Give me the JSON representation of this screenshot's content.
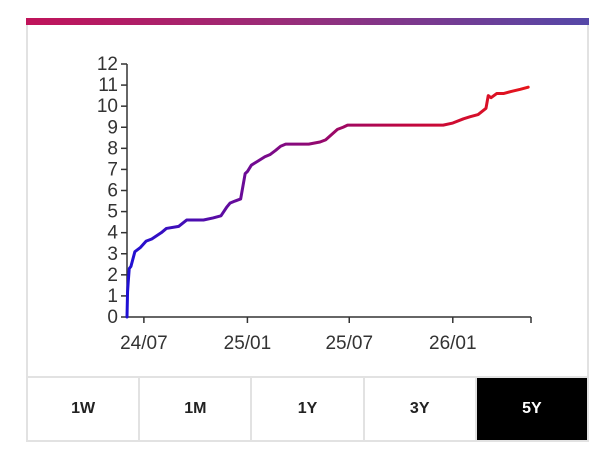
{
  "chart_data": {
    "type": "line",
    "title": "",
    "xlabel": "",
    "ylabel": "",
    "ylim": [
      0,
      12
    ],
    "yticks": [
      0,
      1,
      2,
      3,
      4,
      5,
      6,
      7,
      8,
      9,
      10,
      11,
      12
    ],
    "xticks": [
      "24/07",
      "25/01",
      "25/07",
      "26/01"
    ],
    "xtick_dates": [
      "2024-07-01",
      "2025-01-01",
      "2025-07-01",
      "2026-01-01"
    ],
    "xlim": [
      "2024-06-01",
      "2026-05-20"
    ],
    "grid": false,
    "gradient_colors": [
      "#1f10d4",
      "#7a0a8a",
      "#c0063f",
      "#e6151b"
    ],
    "series": [
      {
        "x": [
          "2024-06-01",
          "2024-06-02",
          "2024-06-03",
          "2024-06-05",
          "2024-06-08",
          "2024-06-15",
          "2024-06-25",
          "2024-07-05",
          "2024-07-15",
          "2024-08-01",
          "2024-08-10",
          "2024-09-01",
          "2024-09-15",
          "2024-10-01",
          "2024-10-15",
          "2024-11-01",
          "2024-11-15",
          "2024-11-25",
          "2024-12-01",
          "2024-12-10",
          "2024-12-20",
          "2024-12-28",
          "2025-01-01",
          "2025-01-08",
          "2025-01-20",
          "2025-02-01",
          "2025-02-10",
          "2025-02-20",
          "2025-03-01",
          "2025-03-10",
          "2025-03-20",
          "2025-04-01",
          "2025-04-20",
          "2025-05-10",
          "2025-05-20",
          "2025-06-10",
          "2025-06-20",
          "2025-06-28",
          "2025-07-15",
          "2025-08-15",
          "2025-09-15",
          "2025-10-15",
          "2025-11-15",
          "2025-12-15",
          "2026-01-01",
          "2026-01-20",
          "2026-02-01",
          "2026-02-15",
          "2026-03-01",
          "2026-03-05",
          "2026-03-10",
          "2026-03-20",
          "2026-04-01",
          "2026-04-15",
          "2026-05-01",
          "2026-05-15"
        ],
        "y": [
          0,
          1.2,
          1.6,
          2.3,
          2.4,
          3.1,
          3.3,
          3.6,
          3.7,
          4.0,
          4.2,
          4.3,
          4.6,
          4.6,
          4.6,
          4.7,
          4.8,
          5.2,
          5.4,
          5.5,
          5.6,
          6.8,
          6.9,
          7.2,
          7.4,
          7.6,
          7.7,
          7.9,
          8.1,
          8.2,
          8.2,
          8.2,
          8.2,
          8.3,
          8.4,
          8.9,
          9.0,
          9.1,
          9.1,
          9.1,
          9.1,
          9.1,
          9.1,
          9.1,
          9.2,
          9.4,
          9.5,
          9.6,
          9.9,
          10.5,
          10.4,
          10.6,
          10.6,
          10.7,
          10.8,
          10.9
        ]
      }
    ]
  },
  "range_tabs": {
    "items": [
      {
        "label": "1W"
      },
      {
        "label": "1M"
      },
      {
        "label": "1Y"
      },
      {
        "label": "3Y"
      },
      {
        "label": "5Y"
      }
    ],
    "selected": "5Y"
  }
}
